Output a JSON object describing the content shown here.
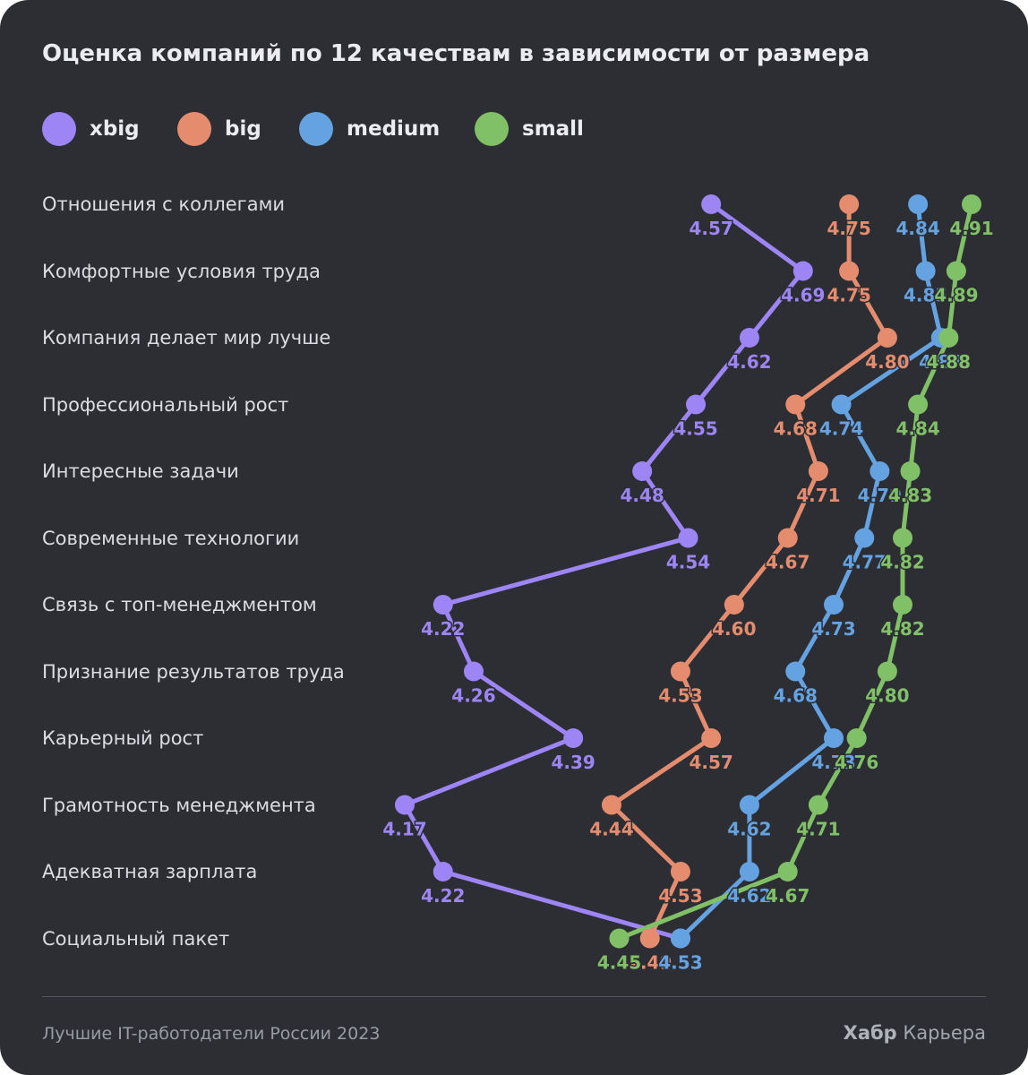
{
  "title": "Оценка компаний по 12 качествам в зависимости от размера",
  "footer": {
    "source": "Лучшие IT-работодатели России 2023",
    "brand_bold": "Хабр",
    "brand_regular": "Карьера"
  },
  "chart_data": {
    "type": "line",
    "title": "Оценка компаний по 12 качествам в зависимости от размера",
    "categories": [
      "Отношения с коллегами",
      "Комфортные условия труда",
      "Компания делает мир лучше",
      "Профессиональный рост",
      "Интересные задачи",
      "Современные технологии",
      "Связь с топ-менеджментом",
      "Признание результатов труда",
      "Карьерный рост",
      "Грамотность менеджмента",
      "Адекватная зарплата",
      "Социальный пакет"
    ],
    "legend_position": "top",
    "grid": false,
    "series": [
      {
        "name": "xbig",
        "color": "#9d85f6",
        "values": [
          4.57,
          4.69,
          4.62,
          4.55,
          4.48,
          4.54,
          4.22,
          4.26,
          4.39,
          4.17,
          4.22,
          4.53
        ]
      },
      {
        "name": "big",
        "color": "#e58c6f",
        "values": [
          4.75,
          4.75,
          4.8,
          4.68,
          4.71,
          4.67,
          4.6,
          4.53,
          4.57,
          4.44,
          4.53,
          4.49
        ]
      },
      {
        "name": "medium",
        "color": "#64a2e2",
        "values": [
          4.84,
          4.85,
          4.87,
          4.74,
          4.79,
          4.77,
          4.73,
          4.68,
          4.73,
          4.62,
          4.62,
          4.53
        ]
      },
      {
        "name": "small",
        "color": "#80c066",
        "values": [
          4.91,
          4.89,
          4.88,
          4.84,
          4.83,
          4.82,
          4.82,
          4.8,
          4.76,
          4.71,
          4.67,
          4.45
        ]
      }
    ],
    "xlim": [
      4.17,
      4.91
    ]
  }
}
